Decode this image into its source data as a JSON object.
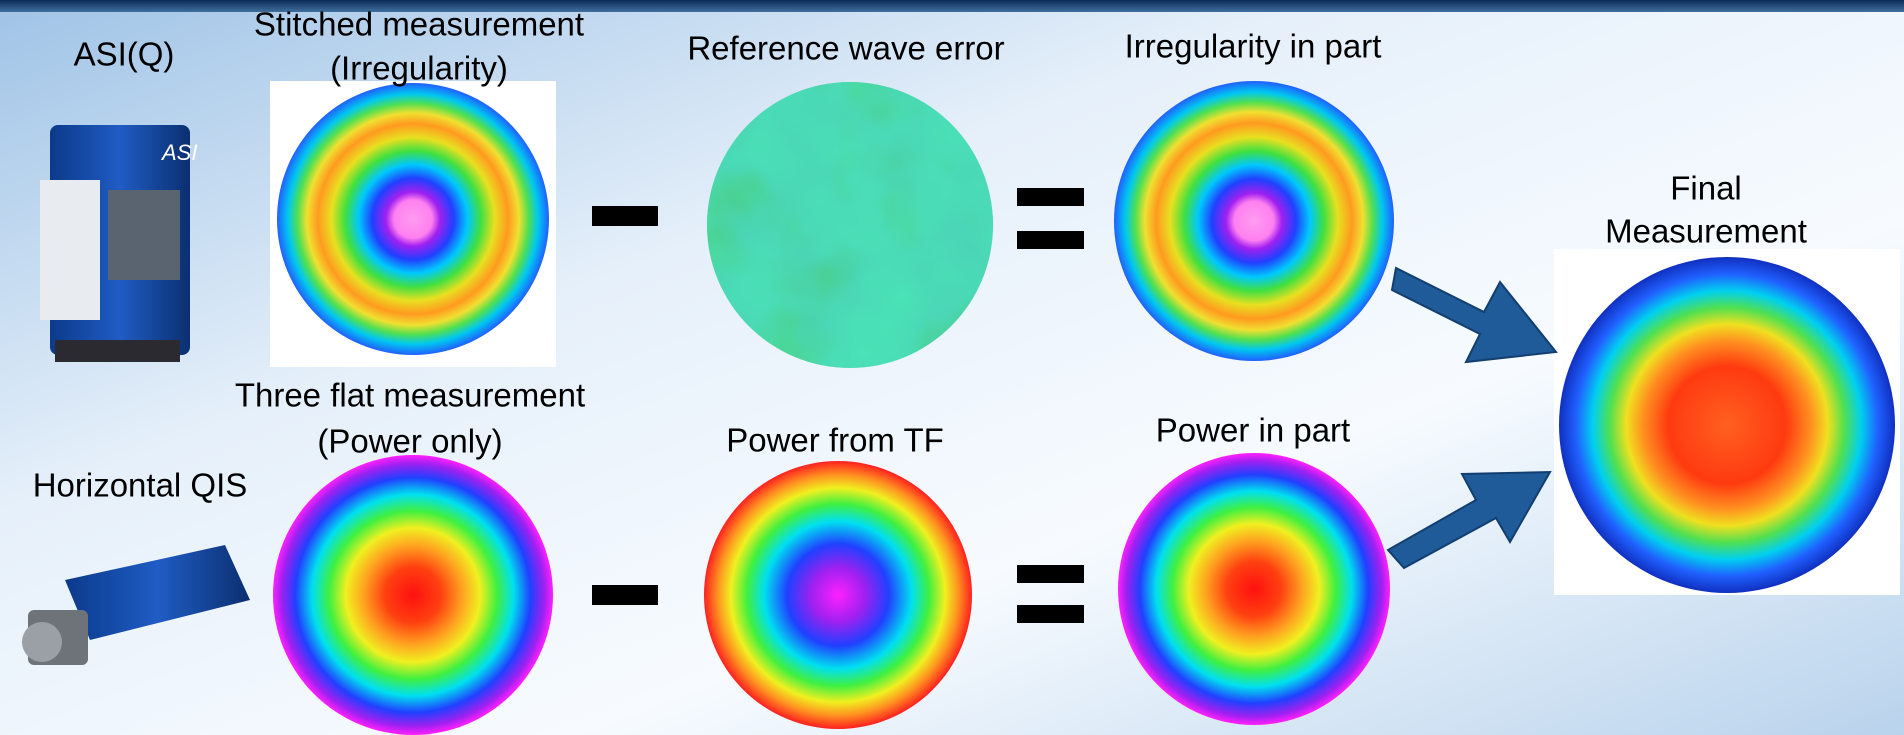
{
  "instruments": {
    "asi": "ASI(Q)",
    "qis": "Horizontal QIS"
  },
  "top_row": {
    "measurement": {
      "lines": [
        "Stitched measurement",
        "(Irregularity)"
      ]
    },
    "reference": "Reference wave error",
    "result": "Irregularity in part"
  },
  "bottom_row": {
    "measurement": {
      "lines": [
        "Three flat measurement",
        "(Power only)"
      ]
    },
    "reference": "Power from TF",
    "result": "Power in part"
  },
  "final": {
    "lines": [
      "Final",
      "Measurement"
    ]
  }
}
